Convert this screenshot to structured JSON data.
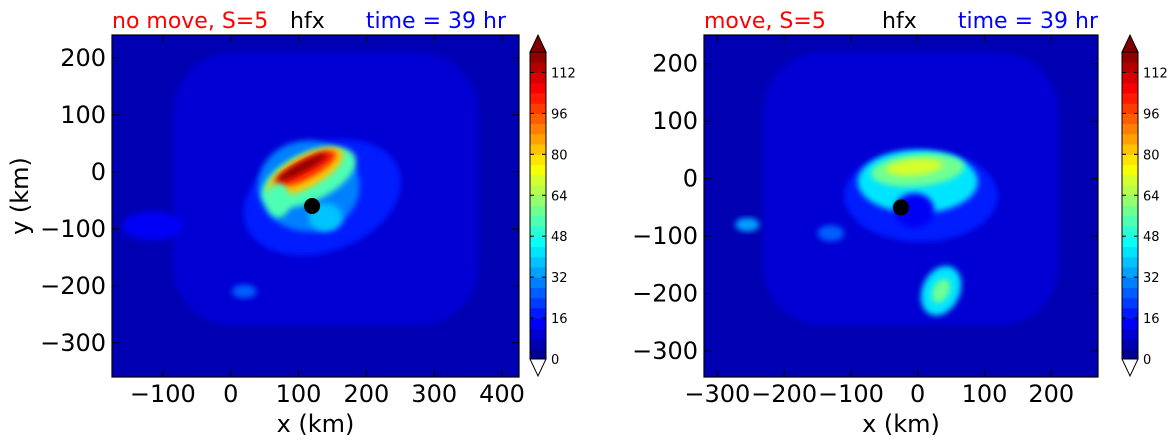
{
  "chart_data": [
    {
      "type": "heatmap",
      "title_left": "no move, S=5",
      "title_center": "hfx",
      "title_right": "time = 39 hr",
      "title_colors": {
        "left": "#ff0000",
        "center": "#000000",
        "right": "#0000ff"
      },
      "xlabel": "x (km)",
      "ylabel": "y (km)",
      "xlim": [
        -175,
        425
      ],
      "ylim": [
        -360,
        240
      ],
      "xticks": [
        -100,
        0,
        100,
        200,
        300,
        400
      ],
      "yticks": [
        200,
        100,
        0,
        -100,
        -200,
        -300
      ],
      "xtick_labels": [
        "−100",
        "0",
        "100",
        "200",
        "300",
        "400"
      ],
      "ytick_labels": [
        "200",
        "100",
        "0",
        "−100",
        "−200",
        "−300"
      ],
      "storm_center": [
        120,
        -60
      ],
      "colorbar": {
        "min": 0,
        "max": 120,
        "ticks": [
          0,
          16,
          32,
          48,
          64,
          80,
          96,
          112
        ],
        "extend": "both",
        "colormap": "jet"
      },
      "features": [
        {
          "kind": "ellipse",
          "cx": 135,
          "cy": -45,
          "rx": 120,
          "ry": 95,
          "rot": -20,
          "value": 16
        },
        {
          "kind": "ellipse",
          "cx": 115,
          "cy": -25,
          "rx": 75,
          "ry": 80,
          "rot": 0,
          "value": 30
        },
        {
          "kind": "ellipse",
          "cx": 115,
          "cy": -10,
          "rx": 75,
          "ry": 42,
          "rot": -25,
          "value": 52
        },
        {
          "kind": "ellipse",
          "cx": 110,
          "cy": 0,
          "rx": 62,
          "ry": 28,
          "rot": -28,
          "value": 80
        },
        {
          "kind": "ellipse",
          "cx": 110,
          "cy": 5,
          "rx": 50,
          "ry": 17,
          "rot": -28,
          "value": 100
        },
        {
          "kind": "ellipse",
          "cx": 105,
          "cy": 8,
          "rx": 42,
          "ry": 9,
          "rot": -28,
          "value": 118
        },
        {
          "kind": "ellipse",
          "cx": 70,
          "cy": -50,
          "rx": 18,
          "ry": 30,
          "rot": 0,
          "value": 52
        },
        {
          "kind": "ellipse",
          "cx": 140,
          "cy": -80,
          "rx": 25,
          "ry": 25,
          "rot": 0,
          "value": 38
        },
        {
          "kind": "ellipse",
          "cx": 20,
          "cy": -210,
          "rx": 18,
          "ry": 12,
          "rot": 0,
          "value": 26
        },
        {
          "kind": "ellipse",
          "cx": -115,
          "cy": -95,
          "rx": 45,
          "ry": 25,
          "rot": 0,
          "value": 12
        }
      ]
    },
    {
      "type": "heatmap",
      "title_left": "move, S=5",
      "title_center": "hfx",
      "title_right": "time = 39 hr",
      "title_colors": {
        "left": "#ff0000",
        "center": "#000000",
        "right": "#0000ff"
      },
      "xlabel": "x (km)",
      "ylabel": "",
      "xlim": [
        -320,
        270
      ],
      "ylim": [
        -345,
        250
      ],
      "xticks": [
        -300,
        -200,
        -100,
        0,
        100,
        200
      ],
      "yticks": [
        200,
        100,
        0,
        -100,
        -200,
        -300
      ],
      "xtick_labels": [
        "−300",
        "−200",
        "−100",
        "0",
        "100",
        "200"
      ],
      "ytick_labels": [
        "200",
        "100",
        "0",
        "−100",
        "−200",
        "−300"
      ],
      "storm_center": [
        -25,
        -50
      ],
      "colorbar": {
        "min": 0,
        "max": 120,
        "ticks": [
          0,
          16,
          32,
          48,
          64,
          80,
          96,
          112
        ],
        "extend": "both",
        "colormap": "jet"
      },
      "features": [
        {
          "kind": "ellipse",
          "cx": 5,
          "cy": -30,
          "rx": 115,
          "ry": 80,
          "rot": 0,
          "value": 16
        },
        {
          "kind": "ellipse",
          "cx": 0,
          "cy": -5,
          "rx": 90,
          "ry": 55,
          "rot": 0,
          "value": 40
        },
        {
          "kind": "ellipse",
          "cx": 0,
          "cy": 15,
          "rx": 70,
          "ry": 28,
          "rot": -5,
          "value": 58
        },
        {
          "kind": "ellipse",
          "cx": -5,
          "cy": 20,
          "rx": 42,
          "ry": 14,
          "rot": -5,
          "value": 70
        },
        {
          "kind": "ellipse",
          "cx": -5,
          "cy": -55,
          "rx": 30,
          "ry": 30,
          "rot": 0,
          "value": 12
        },
        {
          "kind": "ellipse",
          "cx": 35,
          "cy": -195,
          "rx": 28,
          "ry": 45,
          "rot": 25,
          "value": 40
        },
        {
          "kind": "ellipse",
          "cx": 35,
          "cy": -195,
          "rx": 12,
          "ry": 22,
          "rot": 25,
          "value": 58
        },
        {
          "kind": "ellipse",
          "cx": -255,
          "cy": -80,
          "rx": 18,
          "ry": 12,
          "rot": 0,
          "value": 32
        },
        {
          "kind": "ellipse",
          "cx": -130,
          "cy": -95,
          "rx": 20,
          "ry": 14,
          "rot": 0,
          "value": 24
        }
      ]
    }
  ]
}
